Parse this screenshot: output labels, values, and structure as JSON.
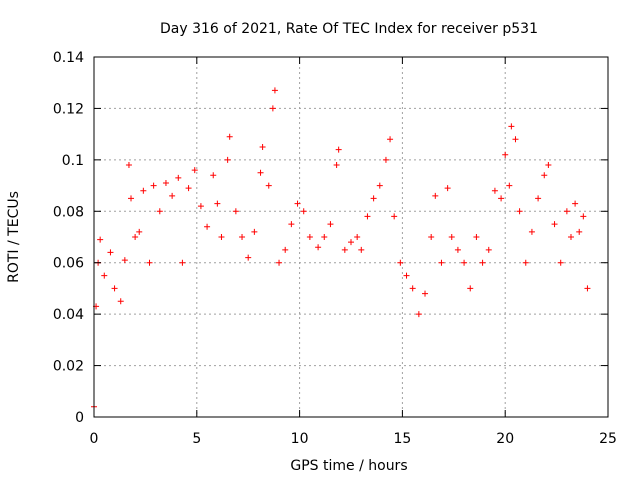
{
  "chart_data": {
    "type": "scatter",
    "title": "Day 316 of 2021, Rate Of TEC Index for receiver p531",
    "xlabel": "GPS time / hours",
    "ylabel": "ROTI / TECUs",
    "xlim": [
      0,
      25
    ],
    "ylim": [
      0,
      0.14
    ],
    "xticks": [
      "0",
      "5",
      "10",
      "15",
      "20",
      "25"
    ],
    "yticks": [
      "0",
      "0.02",
      "0.04",
      "0.06",
      "0.08",
      "0.1",
      "0.12",
      "0.14"
    ],
    "grid": true,
    "marker": "plus",
    "color": "#ff0000",
    "series": [
      {
        "points": [
          [
            0.0,
            0.004
          ],
          [
            0.1,
            0.043
          ],
          [
            0.2,
            0.06
          ],
          [
            0.3,
            0.069
          ],
          [
            0.5,
            0.055
          ],
          [
            0.8,
            0.064
          ],
          [
            1.0,
            0.05
          ],
          [
            1.3,
            0.045
          ],
          [
            1.5,
            0.061
          ],
          [
            1.7,
            0.098
          ],
          [
            1.8,
            0.085
          ],
          [
            2.0,
            0.07
          ],
          [
            2.2,
            0.072
          ],
          [
            2.4,
            0.088
          ],
          [
            2.7,
            0.06
          ],
          [
            2.9,
            0.09
          ],
          [
            3.2,
            0.08
          ],
          [
            3.5,
            0.091
          ],
          [
            3.8,
            0.086
          ],
          [
            4.1,
            0.093
          ],
          [
            4.3,
            0.06
          ],
          [
            4.6,
            0.089
          ],
          [
            4.9,
            0.096
          ],
          [
            5.2,
            0.082
          ],
          [
            5.5,
            0.074
          ],
          [
            5.8,
            0.094
          ],
          [
            6.0,
            0.083
          ],
          [
            6.2,
            0.07
          ],
          [
            6.5,
            0.1
          ],
          [
            6.6,
            0.109
          ],
          [
            6.9,
            0.08
          ],
          [
            7.2,
            0.07
          ],
          [
            7.5,
            0.062
          ],
          [
            7.8,
            0.072
          ],
          [
            8.1,
            0.095
          ],
          [
            8.2,
            0.105
          ],
          [
            8.5,
            0.09
          ],
          [
            8.7,
            0.12
          ],
          [
            8.8,
            0.127
          ],
          [
            9.0,
            0.06
          ],
          [
            9.3,
            0.065
          ],
          [
            9.6,
            0.075
          ],
          [
            9.9,
            0.083
          ],
          [
            10.2,
            0.08
          ],
          [
            10.5,
            0.07
          ],
          [
            10.9,
            0.066
          ],
          [
            11.2,
            0.07
          ],
          [
            11.5,
            0.075
          ],
          [
            11.8,
            0.098
          ],
          [
            11.9,
            0.104
          ],
          [
            12.2,
            0.065
          ],
          [
            12.5,
            0.068
          ],
          [
            12.8,
            0.07
          ],
          [
            13.0,
            0.065
          ],
          [
            13.3,
            0.078
          ],
          [
            13.6,
            0.085
          ],
          [
            13.9,
            0.09
          ],
          [
            14.2,
            0.1
          ],
          [
            14.4,
            0.108
          ],
          [
            14.6,
            0.078
          ],
          [
            14.9,
            0.06
          ],
          [
            15.2,
            0.055
          ],
          [
            15.5,
            0.05
          ],
          [
            15.8,
            0.04
          ],
          [
            16.1,
            0.048
          ],
          [
            16.4,
            0.07
          ],
          [
            16.6,
            0.086
          ],
          [
            16.9,
            0.06
          ],
          [
            17.2,
            0.089
          ],
          [
            17.4,
            0.07
          ],
          [
            17.7,
            0.065
          ],
          [
            18.0,
            0.06
          ],
          [
            18.3,
            0.05
          ],
          [
            18.6,
            0.07
          ],
          [
            18.9,
            0.06
          ],
          [
            19.2,
            0.065
          ],
          [
            19.5,
            0.088
          ],
          [
            19.8,
            0.085
          ],
          [
            20.0,
            0.102
          ],
          [
            20.2,
            0.09
          ],
          [
            20.3,
            0.113
          ],
          [
            20.5,
            0.108
          ],
          [
            20.7,
            0.08
          ],
          [
            21.0,
            0.06
          ],
          [
            21.3,
            0.072
          ],
          [
            21.6,
            0.085
          ],
          [
            21.9,
            0.094
          ],
          [
            22.1,
            0.098
          ],
          [
            22.4,
            0.075
          ],
          [
            22.7,
            0.06
          ],
          [
            23.0,
            0.08
          ],
          [
            23.2,
            0.07
          ],
          [
            23.4,
            0.083
          ],
          [
            23.6,
            0.072
          ],
          [
            23.8,
            0.078
          ],
          [
            24.0,
            0.05
          ]
        ]
      }
    ]
  }
}
